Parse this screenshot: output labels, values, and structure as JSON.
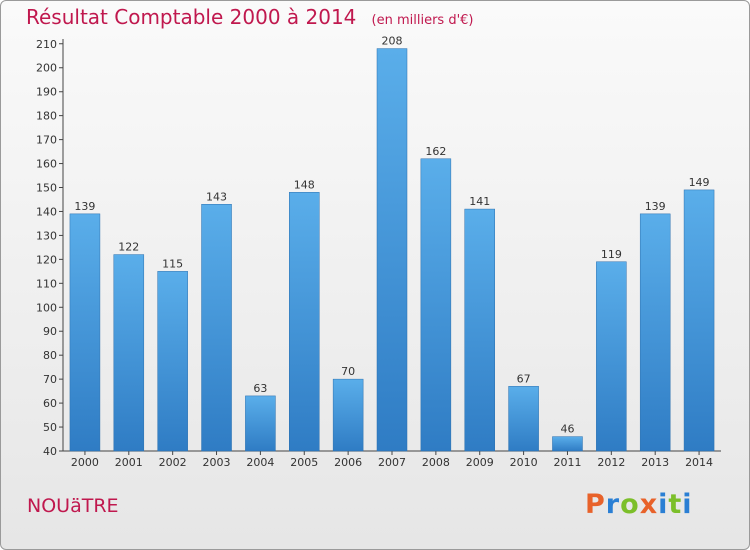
{
  "chart_data": {
    "type": "bar",
    "title": "Résultat Comptable 2000 à 2014",
    "subtitle": "(en milliers d'€)",
    "xlabel": "",
    "ylabel": "",
    "categories": [
      "2000",
      "2001",
      "2002",
      "2003",
      "2004",
      "2005",
      "2006",
      "2007",
      "2008",
      "2009",
      "2010",
      "2011",
      "2012",
      "2013",
      "2014"
    ],
    "values": [
      139,
      122,
      115,
      143,
      63,
      148,
      70,
      208,
      162,
      141,
      67,
      46,
      119,
      139,
      149
    ],
    "ylim": [
      40,
      210
    ],
    "yticks": [
      40,
      50,
      60,
      70,
      80,
      90,
      100,
      110,
      120,
      130,
      140,
      150,
      160,
      170,
      180,
      190,
      200,
      210
    ],
    "grid": false,
    "bar_color": "#3d8fd8"
  },
  "footer": {
    "place": "NOUäTRE",
    "brand": "Proxiti",
    "brand_colors": [
      "#e8622a",
      "#2a7fd4",
      "#7cbf2a",
      "#e8622a",
      "#2a7fd4",
      "#7cbf2a",
      "#2a7fd4"
    ]
  },
  "colors": {
    "title": "#c0184e",
    "axis": "#333333"
  }
}
